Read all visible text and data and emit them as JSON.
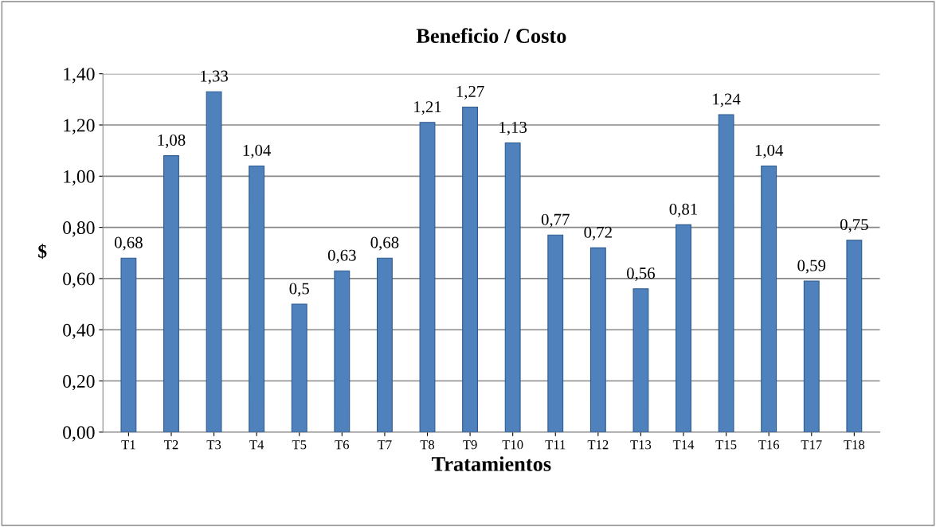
{
  "chart_data": {
    "type": "bar",
    "title": "Beneficio / Costo",
    "xlabel": "Tratamientos",
    "ylabel": "$",
    "categories": [
      "T1",
      "T2",
      "T3",
      "T4",
      "T5",
      "T6",
      "T7",
      "T8",
      "T9",
      "T10",
      "T11",
      "T12",
      "T13",
      "T14",
      "T15",
      "T16",
      "T17",
      "T18"
    ],
    "values": [
      0.68,
      1.08,
      1.33,
      1.04,
      0.5,
      0.63,
      0.68,
      1.21,
      1.27,
      1.13,
      0.77,
      0.72,
      0.56,
      0.81,
      1.24,
      1.04,
      0.59,
      0.75
    ],
    "value_labels": [
      "0,68",
      "1,08",
      "1,33",
      "1,04",
      "0,5",
      "0,63",
      "0,68",
      "1,21",
      "1,27",
      "1,13",
      "0,77",
      "0,72",
      "0,56",
      "0,81",
      "1,24",
      "1,04",
      "0,59",
      "0,75"
    ],
    "color": "#4f81bd",
    "ylim": [
      0,
      1.4
    ],
    "yticks": [
      {
        "value": 0,
        "label": "0,00"
      },
      {
        "value": 0.2,
        "label": "0,20"
      },
      {
        "value": 0.4,
        "label": "0,40"
      },
      {
        "value": 0.6,
        "label": "0,60"
      },
      {
        "value": 0.8,
        "label": "0,80"
      },
      {
        "value": 1.0,
        "label": "1,00"
      },
      {
        "value": 1.2,
        "label": "1,20"
      },
      {
        "value": 1.4,
        "label": "1,40"
      }
    ],
    "grid": "y",
    "legend": false
  }
}
